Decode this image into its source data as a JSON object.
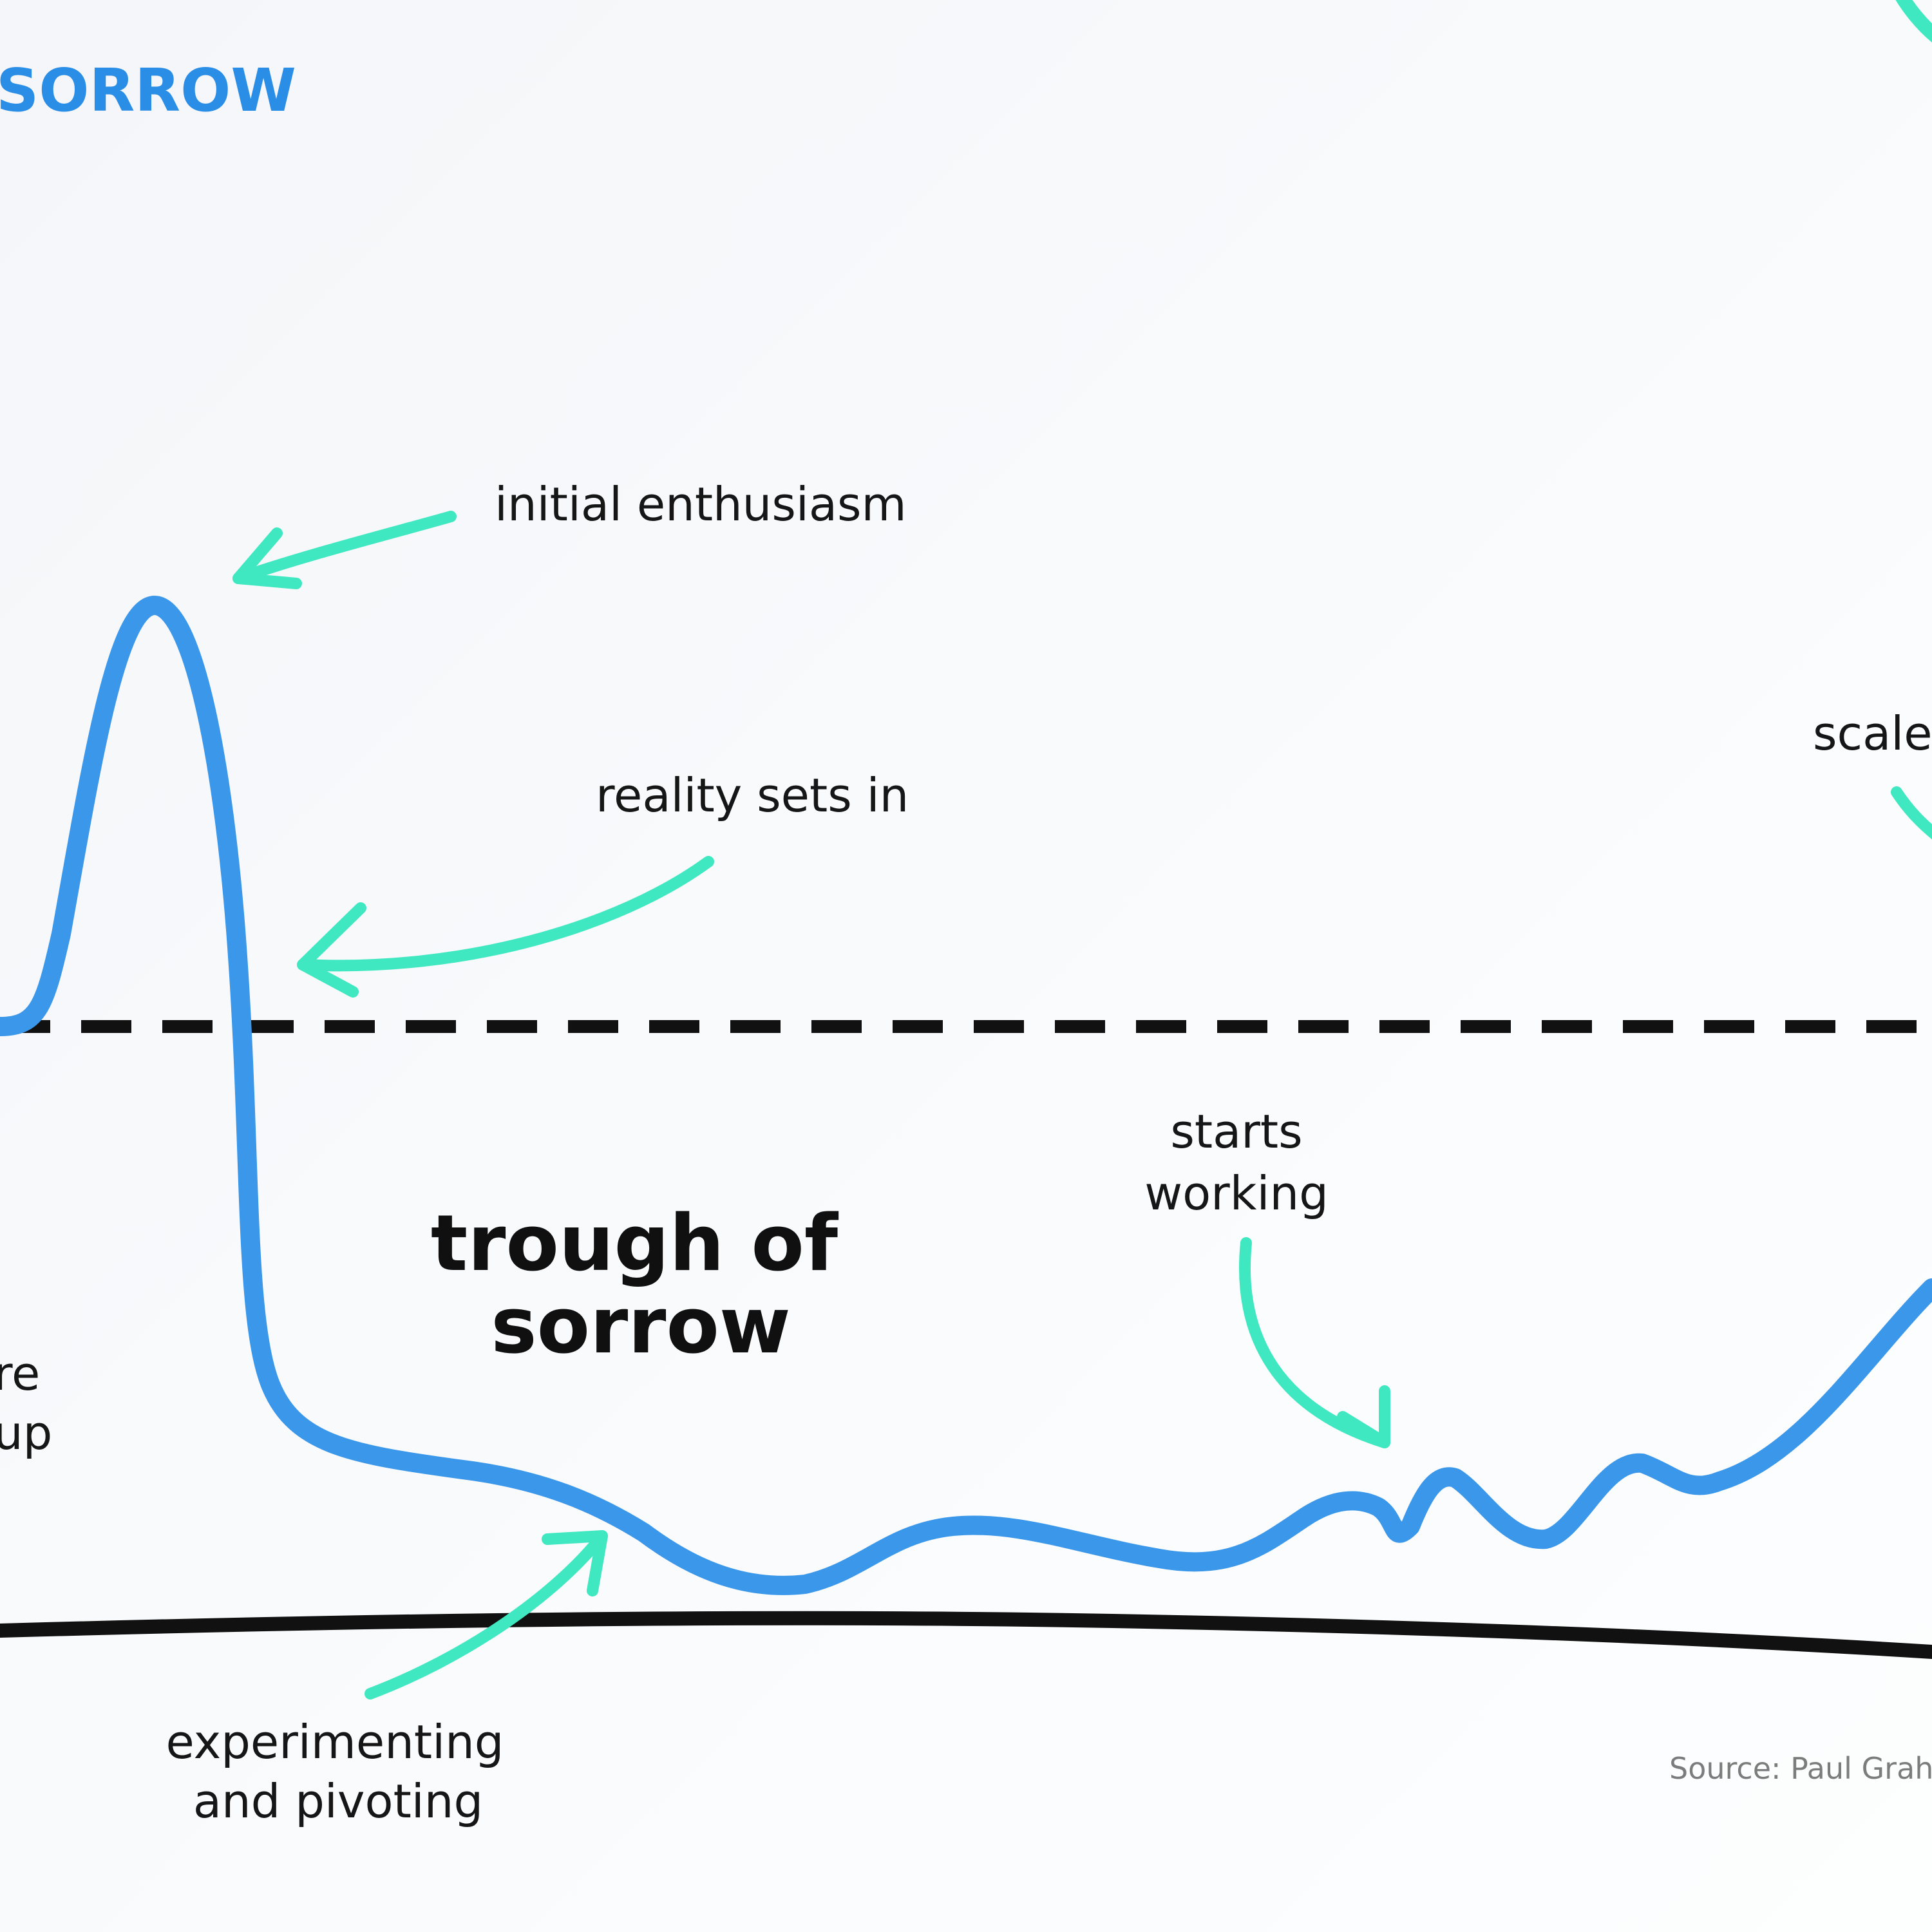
{
  "colors": {
    "curve": "#3a97ea",
    "arrow": "#3fe8c0",
    "title": "#2b8ee6",
    "baseline": "#111111",
    "dash": "#111111",
    "text": "#161616",
    "source": "#7c7c7c"
  },
  "title_fragment": "SORROW",
  "labels": {
    "initial_enthusiasm": "initial enthusiasm",
    "reality_sets_in": "reality sets in",
    "trough_line1": "trough of",
    "trough_line2": "sorrow",
    "starts_line1": "starts",
    "starts_line2": "working",
    "experimenting_line1": "experimenting",
    "experimenting_line2": "and pivoting",
    "scale_fragment": "scale",
    "left_fragment_1": "re",
    "left_fragment_2": "up",
    "source": "Source: Paul Graha"
  },
  "icons": [
    "arrow-icon"
  ]
}
